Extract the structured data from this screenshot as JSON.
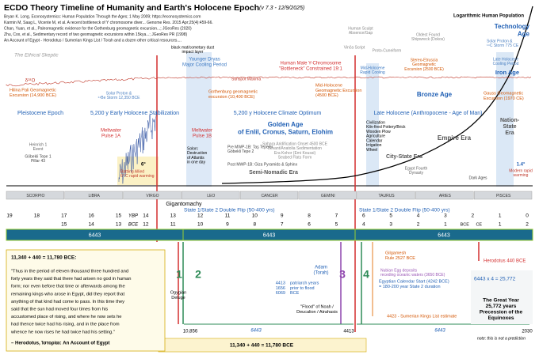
{
  "header": {
    "title": "ECDO Theory Timeline of Humanity and Earth's Holocene Epoch",
    "version": "(v 7.3 - 12/9/2025)",
    "sources": [
      "Bryan K. Long, Econosystemics: Human Population Through the Ages; 1 May 2009; https://econosystemics.com",
      "Karmin M, Saag L, Vicente M, et al. A recent bottleneck of Y chromosome diver... Genome Res. 2015 Apr;25(4):459-66.",
      "Chan, Yuan, et al., Paleomagnetic evidence for the Gothenburg geomagnetic excursion...; JGeoRes (2020)",
      "Zhu, Cox, et al., Sedimentary record of two geomagnetic excursions within 15kya...; JGeoRes PR (1998)",
      "An Account of Egypt - Herodotus / Sumerian Kings List / Torah and a dozen other critical resources...."
    ],
    "brand": "The Ethical Skeptic"
  },
  "top_labels": [
    "Logarithmic Human Population",
    [
      "Technology",
      "Age"
    ],
    [
      "Solar Proton &",
      "¹⁴C Storm 775 CE"
    ],
    [
      "Late Holocene",
      "Cooling Period"
    ],
    "Iron Age",
    [
      "Human Sculpt",
      "Absence/Gap"
    ],
    [
      "Oldest Found",
      "Shipwreck (Dokos)"
    ],
    "Vinča Script",
    "Proto-Cuneiform",
    [
      "black mat/cometary dust",
      "impact layer"
    ],
    [
      "Younger Dryas",
      "Major Cooling Period"
    ],
    "Sunspot Maxima",
    [
      "Human Male Y-Chromosome",
      "\"Bottleneck\" Constrained 19:1"
    ],
    [
      "Mid-Holocene",
      "Rapid Cooling"
    ],
    [
      "Stereo-Etruscia",
      "Geomagnetic",
      "Excursion (2500 BCE)"
    ],
    "δ¹⁸O",
    [
      "Hilina Pali Geomagnetic",
      "Excursion (14,900 BCE)"
    ],
    [
      "Solar Proton &",
      "¹⁴Be Storm 12,350 BCE"
    ],
    [
      "Gothenburg geomagnetic",
      "excursion (10,400 BCE)"
    ],
    [
      "Mid-Holocene",
      "Geomagnetic Excursion",
      "(4500 BCE)"
    ],
    "Bronze Age",
    [
      "Gauss Geomagnetic",
      "Excursion (1970 CE)"
    ],
    "Pleistocene Epoch",
    "5,200 y Early Holocene Stabilization",
    "5,200 y Holocene Climate Optimum",
    "Late Holocene (Anthropocene - Age of Man)",
    [
      "Nation-",
      "State",
      "Era"
    ],
    [
      "Civilization",
      "Kiln-fired Pottery/Brick",
      "Wooden Plow",
      "Agriculture",
      "Calendar",
      "Irrigation",
      "Wheel"
    ],
    [
      "Golden Age",
      "of Enlil, Cronus, Saturn, Elohim"
    ],
    [
      "Sahara Aridification Onset 4500 BCE",
      "Levant/Anatolia Sedimentation",
      "Era Kohor (Emi Koussi)",
      "Seabed Flats Form"
    ],
    "Empire Era",
    "City-State Era",
    [
      "Meltwater",
      "Pulse 1A"
    ],
    [
      "Meltwater",
      "Pulse 1B"
    ],
    [
      "Heinrich 1",
      "Event"
    ],
    [
      "Göbekli Tepe 1",
      "Pillar 43"
    ],
    [
      "Solon:",
      "Destruction",
      "of Atlantis",
      "in one day"
    ],
    [
      "Pre MWP-1B: Taş Tepeler",
      "Göbekli Tepe 2"
    ],
    "Post MWP-1B: Giza Pyramids & Sphinx",
    "Semi-Nomadic Era",
    "6°",
    [
      "Battling Allied",
      "6° C rapid warming"
    ],
    [
      "Egypt Fourth",
      "Dynasty"
    ],
    "Dark Ages",
    "1.4°",
    [
      "Modern rapid",
      "warming"
    ]
  ],
  "zodiac": [
    "SCORPIO",
    "LIBRA",
    "VIRGO",
    "LEO",
    "CANCER",
    "GEMINI",
    "TAURUS",
    "ARIES",
    "PISCES"
  ],
  "ybp_row": {
    "label": "YBP",
    "values": [
      19,
      18,
      17,
      16,
      15,
      14,
      13,
      12,
      11,
      10,
      9,
      8,
      7,
      6,
      5,
      4,
      3,
      2,
      1,
      0
    ]
  },
  "bce_row": {
    "label": "BCE",
    "values": [
      15,
      14,
      13,
      12,
      11,
      10,
      9,
      8,
      7,
      6,
      5,
      4,
      3,
      2,
      1
    ],
    "ce_label": "CE",
    "ce_values": [
      1,
      2
    ]
  },
  "cycle_bar": [
    "6443",
    "6443",
    "6443"
  ],
  "bottom_labels": [
    "Gigantomachy",
    "State 1/State 2 Double Flip (50-400 yrs)",
    "State 1/State 2 Double Flip (50-400 yrs)",
    "1",
    "2",
    "3",
    "4",
    [
      "Ogygian",
      "Deluge"
    ],
    [
      "Adam",
      "(Torah)"
    ],
    [
      "4413",
      "1656",
      "6069"
    ],
    [
      "patriarch years",
      "prior to flood",
      "BCE"
    ],
    [
      "\"Flood\" of Noah /",
      "Deucalion / Atrahasis"
    ],
    [
      "Gilgamesh",
      "Rule 2527 BCE"
    ],
    [
      "Nubian Egg deposits",
      "receding oceanic waters (3650 BCE)"
    ],
    [
      "Egyptian Calendar Start (4242 BCE)",
      "= 180-200 year State 2 duration"
    ],
    "4423 - Sumerian Kings List estimate",
    "Herodotus 440 BCE",
    "6443 x 4 = 25,772",
    [
      "The Great Year",
      "25,772 years",
      "Precession of the",
      "Equinoxes"
    ],
    "note: this is not a prediction",
    "10,856",
    "6443",
    "4413",
    "6443",
    "2030",
    "11,340 + 440 = 11,780 BCE"
  ],
  "quote": {
    "title": "11,340 + 440 = 11,780 BCE:",
    "lines": [
      "\"Thus in the period of eleven thousand three hundred and",
      "forty years they said that there had arisen no god in human",
      "form; nor even before that time or afterwards among the",
      "remaining kings who arose in Egypt, did they report that",
      "anything of that kind had come to pass. In this time they",
      "said that the sun had moved four times from his",
      "accustomed place of rising, and where he now sets he",
      "had thence twice had his rising, and in the place from",
      "whence he now rises he had twice had his setting.\""
    ],
    "attribution": "– Herodotus, Ἱστορίαι: An Account of Egypt"
  }
}
